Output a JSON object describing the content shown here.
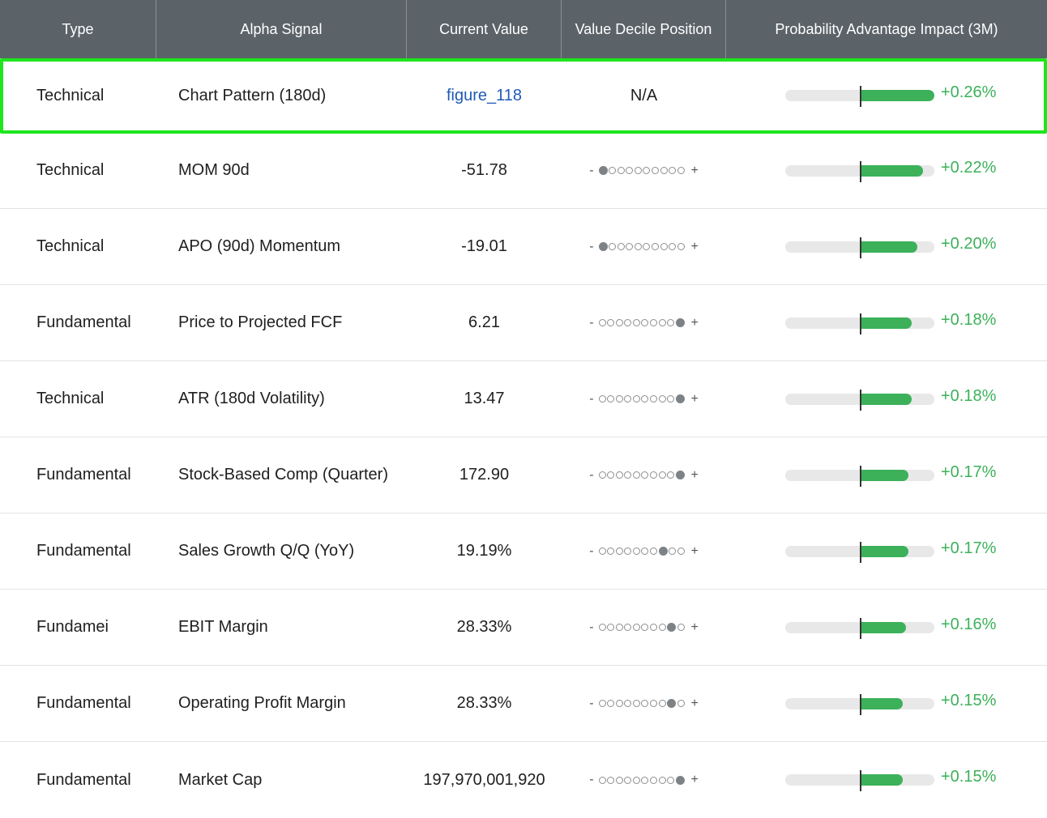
{
  "header": {
    "type": "Type",
    "signal": "Alpha Signal",
    "value": "Current Value",
    "decile": "Value Decile Position",
    "impact": "Probability Advantage Impact (3M)"
  },
  "rows": [
    {
      "type": "Technical",
      "signal": "Chart Pattern (180d)",
      "value": "figure_118",
      "value_link": true,
      "decile_text": "N/A",
      "decile": null,
      "impact": "+0.26%",
      "impact_value": 0.26
    },
    {
      "type": "Technical",
      "signal": "MOM 90d",
      "value": "-51.78",
      "decile": 1,
      "impact": "+0.22%",
      "impact_value": 0.22
    },
    {
      "type": "Technical",
      "signal": "APO (90d) Momentum",
      "value": "-19.01",
      "decile": 1,
      "impact": "+0.20%",
      "impact_value": 0.2
    },
    {
      "type": "Fundamental",
      "signal": "Price to Projected FCF",
      "value": "6.21",
      "decile": 10,
      "impact": "+0.18%",
      "impact_value": 0.18
    },
    {
      "type": "Technical",
      "signal": "ATR (180d Volatility)",
      "value": "13.47",
      "decile": 10,
      "impact": "+0.18%",
      "impact_value": 0.18
    },
    {
      "type": "Fundamental",
      "signal": "Stock-Based Comp (Quarter)",
      "value": "172.90",
      "decile": 10,
      "impact": "+0.17%",
      "impact_value": 0.17
    },
    {
      "type": "Fundamental",
      "signal": "Sales Growth Q/Q (YoY)",
      "value": "19.19%",
      "decile": 8,
      "impact": "+0.17%",
      "impact_value": 0.17
    },
    {
      "type": "Fundamei",
      "signal": "EBIT Margin",
      "value": "28.33%",
      "decile": 9,
      "impact": "+0.16%",
      "impact_value": 0.16
    },
    {
      "type": "Fundamental",
      "signal": "Operating Profit Margin",
      "value": "28.33%",
      "decile": 9,
      "impact": "+0.15%",
      "impact_value": 0.15
    },
    {
      "type": "Fundamental",
      "signal": "Market Cap",
      "value": "197,970,001,920",
      "decile": 10,
      "impact": "+0.15%",
      "impact_value": 0.15
    }
  ],
  "decile_minus": "-",
  "decile_plus": "+",
  "colors": {
    "header_bg": "#5b6268",
    "positive": "#3cb15a",
    "link": "#1f5bb5",
    "highlight": "#1ee51e"
  }
}
